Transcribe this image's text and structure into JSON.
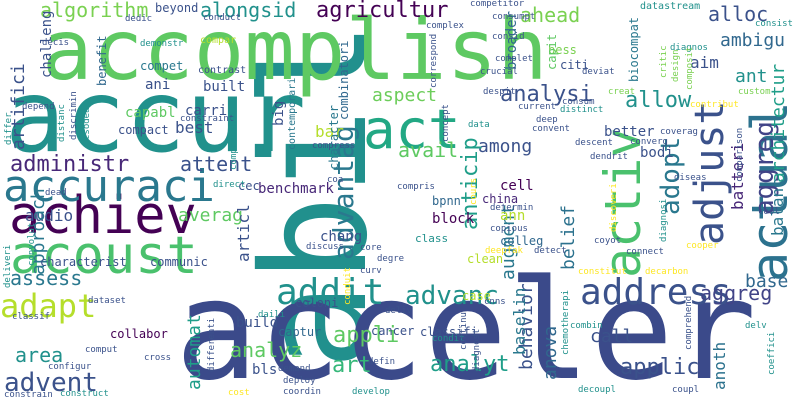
{
  "title": "",
  "palette": {
    "background": "#ffffff",
    "colors": [
      "#440154",
      "#3b528b",
      "#21918c",
      "#5ec962",
      "#fde725"
    ]
  },
  "words": [
    {
      "text": "abil",
      "color": "#21908d",
      "orientation": "vertical"
    },
    {
      "text": "acceler",
      "color": "#3b4a8a",
      "orientation": "horizontal"
    },
    {
      "text": "accomplish",
      "color": "#5ec962",
      "orientation": "horizontal"
    },
    {
      "text": "accur",
      "color": "#21918c",
      "orientation": "horizontal"
    },
    {
      "text": "acoust",
      "color": "#4ac16d",
      "orientation": "horizontal"
    },
    {
      "text": "achiev",
      "color": "#440154",
      "orientation": "horizontal"
    },
    {
      "text": "accuraci",
      "color": "#2a788e",
      "orientation": "horizontal"
    },
    {
      "text": "actual",
      "color": "#2c728e",
      "orientation": "vertical"
    },
    {
      "text": "activ",
      "color": "#4ac16d",
      "orientation": "vertical"
    },
    {
      "text": "adjust",
      "color": "#3b528b",
      "orientation": "vertical"
    },
    {
      "text": "act",
      "color": "#22a884",
      "orientation": "horizontal"
    },
    {
      "text": "addit",
      "color": "#21918c",
      "orientation": "horizontal"
    },
    {
      "text": "address",
      "color": "#3b528b",
      "orientation": "horizontal"
    },
    {
      "text": "adapt",
      "color": "#b5de2b",
      "orientation": "horizontal"
    },
    {
      "text": "advent",
      "color": "#3b528b",
      "orientation": "horizontal"
    },
    {
      "text": "advantag",
      "color": "#2a788e",
      "orientation": "vertical"
    },
    {
      "text": "advanc",
      "color": "#21918c",
      "orientation": "horizontal"
    },
    {
      "text": "administr",
      "color": "#482878",
      "orientation": "horizontal"
    },
    {
      "text": "agricultur",
      "color": "#440154",
      "orientation": "horizontal"
    },
    {
      "text": "alongsid",
      "color": "#21918c",
      "orientation": "horizontal"
    },
    {
      "text": "algorithm",
      "color": "#7ad151",
      "orientation": "horizontal"
    },
    {
      "text": "ahead",
      "color": "#7ad151",
      "orientation": "horizontal"
    },
    {
      "text": "alloc",
      "color": "#3b528b",
      "orientation": "horizontal"
    },
    {
      "text": "ambigu",
      "color": "#31688e",
      "orientation": "horizontal"
    },
    {
      "text": "aim",
      "color": "#3b528b",
      "orientation": "horizontal"
    },
    {
      "text": "ant",
      "color": "#21918c",
      "orientation": "horizontal"
    },
    {
      "text": "aggreg",
      "color": "#414487",
      "orientation": "vertical"
    },
    {
      "text": "adopt",
      "color": "#2a788e",
      "orientation": "vertical"
    },
    {
      "text": "allow",
      "color": "#21918c",
      "orientation": "horizontal"
    },
    {
      "text": "analysi",
      "color": "#3b528b",
      "orientation": "horizontal"
    },
    {
      "text": "aspect",
      "color": "#6ccd5a",
      "orientation": "horizontal"
    },
    {
      "text": "among",
      "color": "#3b528b",
      "orientation": "horizontal"
    },
    {
      "text": "avail",
      "color": "#5ec962",
      "orientation": "horizontal"
    },
    {
      "text": "anticip",
      "color": "#1f9e89",
      "orientation": "vertical"
    },
    {
      "text": "architectur",
      "color": "#1f9e89",
      "orientation": "vertical"
    },
    {
      "text": "balanc",
      "color": "#2a788e",
      "orientation": "vertical"
    },
    {
      "text": "batteri",
      "color": "#482878",
      "orientation": "vertical"
    },
    {
      "text": "belief",
      "color": "#2c728e",
      "orientation": "vertical"
    },
    {
      "text": "base",
      "color": "#31688e",
      "orientation": "horizontal"
    },
    {
      "text": "analyz",
      "color": "#5ec962",
      "orientation": "horizontal"
    },
    {
      "text": "analyt",
      "color": "#1f9e89",
      "orientation": "horizontal"
    },
    {
      "text": "applic",
      "color": "#3b528b",
      "orientation": "horizontal"
    },
    {
      "text": "appli",
      "color": "#5ec962",
      "orientation": "horizontal"
    },
    {
      "text": "art",
      "color": "#35b779",
      "orientation": "horizontal"
    },
    {
      "text": "area",
      "color": "#21918c",
      "orientation": "horizontal"
    },
    {
      "text": "assess",
      "color": "#2a788e",
      "orientation": "horizontal"
    },
    {
      "text": "attent",
      "color": "#3b528b",
      "orientation": "horizontal"
    },
    {
      "text": "averag",
      "color": "#5ec962",
      "orientation": "horizontal"
    },
    {
      "text": "audio",
      "color": "#3b528b",
      "orientation": "horizontal"
    },
    {
      "text": "approach",
      "color": "#2a788e",
      "orientation": "vertical"
    },
    {
      "text": "artifici",
      "color": "#3b528b",
      "orientation": "vertical"
    },
    {
      "text": "automat",
      "color": "#1f9e89",
      "orientation": "vertical"
    },
    {
      "text": "behavior",
      "color": "#3b528b",
      "orientation": "vertical"
    },
    {
      "text": "augment",
      "color": "#2a788e",
      "orientation": "vertical"
    },
    {
      "text": "anova",
      "color": "#31688e",
      "orientation": "vertical"
    },
    {
      "text": "anoth",
      "color": "#2c728e",
      "orientation": "vertical"
    },
    {
      "text": "baselin",
      "color": "#2a788e",
      "orientation": "vertical"
    },
    {
      "text": "articl",
      "color": "#3b528b",
      "orientation": "vertical"
    },
    {
      "text": "aggreg",
      "color": "#414487",
      "orientation": "horizontal"
    },
    {
      "text": "benchmark",
      "color": "#482878",
      "orientation": "horizontal"
    },
    {
      "text": "bar",
      "color": "#b5de2b",
      "orientation": "horizontal"
    },
    {
      "text": "best",
      "color": "#3b528b",
      "orientation": "horizontal"
    },
    {
      "text": "bls",
      "color": "#3b528b",
      "orientation": "horizontal"
    },
    {
      "text": "block",
      "color": "#440154",
      "orientation": "horizontal"
    },
    {
      "text": "bpnn",
      "color": "#31688e",
      "orientation": "horizontal"
    },
    {
      "text": "build",
      "color": "#3b528b",
      "orientation": "horizontal"
    },
    {
      "text": "built",
      "color": "#3b528b",
      "orientation": "horizontal"
    },
    {
      "text": "ann",
      "color": "#b5de2b",
      "orientation": "horizontal"
    },
    {
      "text": "ani",
      "color": "#3b528b",
      "orientation": "horizontal"
    },
    {
      "text": "call",
      "color": "#3b528b",
      "orientation": "horizontal"
    },
    {
      "text": "capabl",
      "color": "#5ec962",
      "orientation": "horizontal"
    },
    {
      "text": "carri",
      "color": "#3b528b",
      "orientation": "horizontal"
    },
    {
      "text": "cell",
      "color": "#440154",
      "orientation": "horizontal"
    },
    {
      "text": "china",
      "color": "#482878",
      "orientation": "horizontal"
    },
    {
      "text": "chang",
      "color": "#3b528b",
      "orientation": "horizontal"
    },
    {
      "text": "cec",
      "color": "#3b528b",
      "orientation": "horizontal"
    },
    {
      "text": "collabor",
      "color": "#440154",
      "orientation": "horizontal"
    },
    {
      "text": "cancer",
      "color": "#3b528b",
      "orientation": "horizontal"
    },
    {
      "text": "captur",
      "color": "#31688e",
      "orientation": "horizontal"
    },
    {
      "text": "case",
      "color": "#b5de2b",
      "orientation": "horizontal"
    },
    {
      "text": "classifi",
      "color": "#3b528b",
      "orientation": "horizontal"
    },
    {
      "text": "characterist",
      "color": "#3b528b",
      "orientation": "horizontal"
    },
    {
      "text": "communic",
      "color": "#3b528b",
      "orientation": "horizontal"
    },
    {
      "text": "colleg",
      "color": "#31688e",
      "orientation": "horizontal"
    },
    {
      "text": "clean",
      "color": "#b5de2b",
      "orientation": "horizontal"
    },
    {
      "text": "coloni",
      "color": "#3b528b",
      "orientation": "horizontal"
    },
    {
      "text": "better",
      "color": "#3b528b",
      "orientation": "horizontal"
    },
    {
      "text": "bodi",
      "color": "#3b528b",
      "orientation": "horizontal"
    },
    {
      "text": "bess",
      "color": "#7ad151",
      "orientation": "horizontal"
    },
    {
      "text": "broader",
      "color": "#31688e",
      "orientation": "vertical"
    },
    {
      "text": "capit",
      "color": "#5ec962",
      "orientation": "vertical"
    },
    {
      "text": "citi",
      "color": "#3b528b",
      "orientation": "horizontal"
    },
    {
      "text": "compet",
      "color": "#2a788e",
      "orientation": "horizontal"
    },
    {
      "text": "compact",
      "color": "#3b528b",
      "orientation": "horizontal"
    },
    {
      "text": "benefit",
      "color": "#31688e",
      "orientation": "vertical"
    },
    {
      "text": "challeng",
      "color": "#3b528b",
      "orientation": "vertical"
    },
    {
      "text": "character",
      "color": "#2a788e",
      "orientation": "vertical"
    },
    {
      "text": "combinatori",
      "color": "#31688e",
      "orientation": "vertical"
    },
    {
      "text": "contemporari",
      "color": "#2a788e",
      "orientation": "vertical"
    },
    {
      "text": "big",
      "color": "#3b528b",
      "orientation": "vertical"
    },
    {
      "text": "biocompat",
      "color": "#2a788e",
      "orientation": "vertical"
    },
    {
      "text": "beyond",
      "color": "#3b528b",
      "orientation": "horizontal"
    },
    {
      "text": "compar",
      "color": "#b5de2b",
      "orientation": "horizontal"
    },
    {
      "text": "contrast",
      "color": "#3b528b",
      "orientation": "horizontal"
    },
    {
      "text": "constraint",
      "color": "#3b528b",
      "orientation": "horizontal"
    },
    {
      "text": "conduct",
      "color": "#3b528b",
      "orientation": "horizontal"
    },
    {
      "text": "dedic",
      "color": "#3b528b",
      "orientation": "horizontal"
    },
    {
      "text": "decis",
      "color": "#3b528b",
      "orientation": "horizontal"
    },
    {
      "text": "complex",
      "color": "#3b528b",
      "orientation": "horizontal"
    },
    {
      "text": "consumpt",
      "color": "#3b528b",
      "orientation": "horizontal"
    },
    {
      "text": "consid",
      "color": "#3b528b",
      "orientation": "horizontal"
    },
    {
      "text": "complet",
      "color": "#3b528b",
      "orientation": "horizontal"
    },
    {
      "text": "competitor",
      "color": "#3b528b",
      "orientation": "horizontal"
    },
    {
      "text": "crucial",
      "color": "#3b528b",
      "orientation": "horizontal"
    },
    {
      "text": "deviat",
      "color": "#3b528b",
      "orientation": "horizontal"
    },
    {
      "text": "datastream",
      "color": "#21918c",
      "orientation": "horizontal"
    },
    {
      "text": "diagnos",
      "color": "#21918c",
      "orientation": "horizontal"
    },
    {
      "text": "consist",
      "color": "#21918c",
      "orientation": "horizontal"
    },
    {
      "text": "critic",
      "color": "#7ad151",
      "orientation": "vertical"
    },
    {
      "text": "design",
      "color": "#7ad151",
      "orientation": "vertical"
    },
    {
      "text": "composit",
      "color": "#7ad151",
      "orientation": "vertical"
    },
    {
      "text": "creat",
      "color": "#7ad151",
      "orientation": "horizontal"
    },
    {
      "text": "custom",
      "color": "#7ad151",
      "orientation": "horizontal"
    },
    {
      "text": "contribut",
      "color": "#fde725",
      "orientation": "horizontal"
    },
    {
      "text": "despit",
      "color": "#3b528b",
      "orientation": "horizontal"
    },
    {
      "text": "consum",
      "color": "#3b528b",
      "orientation": "horizontal"
    },
    {
      "text": "current",
      "color": "#3b528b",
      "orientation": "horizontal"
    },
    {
      "text": "distinct",
      "color": "#21918c",
      "orientation": "horizontal"
    },
    {
      "text": "deep",
      "color": "#3b528b",
      "orientation": "horizontal"
    },
    {
      "text": "data",
      "color": "#21918c",
      "orientation": "horizontal"
    },
    {
      "text": "convent",
      "color": "#3b528b",
      "orientation": "horizontal"
    },
    {
      "text": "concept",
      "color": "#3b528b",
      "orientation": "vertical"
    },
    {
      "text": "correspond",
      "color": "#3b528b",
      "orientation": "vertical"
    },
    {
      "text": "comprehens",
      "color": "#21918c",
      "orientation": "vertical"
    },
    {
      "text": "demonstr",
      "color": "#21918c",
      "orientation": "horizontal"
    },
    {
      "text": "compress",
      "color": "#3b528b",
      "orientation": "horizontal"
    },
    {
      "text": "converg",
      "color": "#3b528b",
      "orientation": "horizontal"
    },
    {
      "text": "coverag",
      "color": "#3b528b",
      "orientation": "horizontal"
    },
    {
      "text": "comparison",
      "color": "#3b528b",
      "orientation": "vertical"
    },
    {
      "text": "cool",
      "color": "#3b528b",
      "orientation": "horizontal"
    },
    {
      "text": "descent",
      "color": "#3b528b",
      "orientation": "horizontal"
    },
    {
      "text": "dendrit",
      "color": "#3b528b",
      "orientation": "horizontal"
    },
    {
      "text": "coa",
      "color": "#3b528b",
      "orientation": "horizontal"
    },
    {
      "text": "compris",
      "color": "#3b528b",
      "orientation": "horizontal"
    },
    {
      "text": "determin",
      "color": "#3b528b",
      "orientation": "horizontal"
    },
    {
      "text": "copious",
      "color": "#3b528b",
      "orientation": "horizontal"
    },
    {
      "text": "coyot",
      "color": "#3b528b",
      "orientation": "horizontal"
    },
    {
      "text": "diseas",
      "color": "#3b528b",
      "orientation": "horizontal"
    },
    {
      "text": "direct",
      "color": "#21918c",
      "orientation": "horizontal"
    },
    {
      "text": "dead",
      "color": "#3b528b",
      "orientation": "horizontal"
    },
    {
      "text": "discuss",
      "color": "#3b528b",
      "orientation": "horizontal"
    },
    {
      "text": "core",
      "color": "#3b528b",
      "orientation": "horizontal"
    },
    {
      "text": "degre",
      "color": "#3b528b",
      "orientation": "horizontal"
    },
    {
      "text": "class",
      "color": "#21918c",
      "orientation": "horizontal"
    },
    {
      "text": "connect",
      "color": "#3b528b",
      "orientation": "horizontal"
    },
    {
      "text": "cooper",
      "color": "#fde725",
      "orientation": "horizontal"
    },
    {
      "text": "curv",
      "color": "#3b528b",
      "orientation": "horizontal"
    },
    {
      "text": "cnns",
      "color": "#3b528b",
      "orientation": "horizontal"
    },
    {
      "text": "defin",
      "color": "#3b528b",
      "orientation": "horizontal"
    },
    {
      "text": "develop",
      "color": "#21918c",
      "orientation": "horizontal"
    },
    {
      "text": "deploy",
      "color": "#3b528b",
      "orientation": "horizontal"
    },
    {
      "text": "demand",
      "color": "#3b528b",
      "orientation": "horizontal"
    },
    {
      "text": "coordin",
      "color": "#3b528b",
      "orientation": "horizontal"
    },
    {
      "text": "cost",
      "color": "#fde725",
      "orientation": "horizontal"
    },
    {
      "text": "cross",
      "color": "#3b528b",
      "orientation": "horizontal"
    },
    {
      "text": "configur",
      "color": "#3b528b",
      "orientation": "horizontal"
    },
    {
      "text": "constrain",
      "color": "#3b528b",
      "orientation": "horizontal"
    },
    {
      "text": "construct",
      "color": "#21918c",
      "orientation": "horizontal"
    },
    {
      "text": "comput",
      "color": "#3b528b",
      "orientation": "horizontal"
    },
    {
      "text": "condit",
      "color": "#21918c",
      "orientation": "horizontal"
    },
    {
      "text": "combin",
      "color": "#21918c",
      "orientation": "horizontal"
    },
    {
      "text": "coupl",
      "color": "#3b528b",
      "orientation": "horizontal"
    },
    {
      "text": "decoupl",
      "color": "#21918c",
      "orientation": "horizontal"
    },
    {
      "text": "delv",
      "color": "#21918c",
      "orientation": "horizontal"
    },
    {
      "text": "constitut",
      "color": "#fde725",
      "orientation": "horizontal"
    },
    {
      "text": "decarbon",
      "color": "#fde725",
      "orientation": "horizontal"
    },
    {
      "text": "deliv",
      "color": "#3b528b",
      "orientation": "horizontal"
    },
    {
      "text": "dataset",
      "color": "#3b528b",
      "orientation": "horizontal"
    },
    {
      "text": "classif",
      "color": "#3b528b",
      "orientation": "horizontal"
    },
    {
      "text": "daili",
      "color": "#21918c",
      "orientation": "horizontal"
    },
    {
      "text": "depend",
      "color": "#3b528b",
      "orientation": "horizontal"
    },
    {
      "text": "differ",
      "color": "#21918c",
      "orientation": "vertical"
    },
    {
      "text": "distanc",
      "color": "#21918c",
      "orientation": "vertical"
    },
    {
      "text": "discrimin",
      "color": "#3b528b",
      "orientation": "vertical"
    },
    {
      "text": "csodea",
      "color": "#21918c",
      "orientation": "vertical"
    },
    {
      "text": "convolut",
      "color": "#21918c",
      "orientation": "vertical"
    },
    {
      "text": "deliveri",
      "color": "#21918c",
      "orientation": "vertical"
    },
    {
      "text": "differenti",
      "color": "#3b528b",
      "orientation": "vertical"
    },
    {
      "text": "diagnost",
      "color": "#3b528b",
      "orientation": "vertical"
    },
    {
      "text": "continu",
      "color": "#3b528b",
      "orientation": "vertical"
    },
    {
      "text": "chemotherapi",
      "color": "#21918c",
      "orientation": "vertical"
    },
    {
      "text": "comprehend",
      "color": "#3b528b",
      "orientation": "vertical"
    },
    {
      "text": "coeffici",
      "color": "#21918c",
      "orientation": "vertical"
    },
    {
      "text": "detect",
      "color": "#3b528b",
      "orientation": "horizontal"
    },
    {
      "text": "deepfak",
      "color": "#fde725",
      "orientation": "horizontal"
    },
    {
      "text": "discoveri",
      "color": "#fde725",
      "orientation": "vertical"
    },
    {
      "text": "conduit",
      "color": "#fde725",
      "orientation": "vertical"
    },
    {
      "text": "diagnosi",
      "color": "#21918c",
      "orientation": "vertical"
    },
    {
      "text": "cours",
      "color": "#fde725",
      "orientation": "vertical"
    }
  ]
}
